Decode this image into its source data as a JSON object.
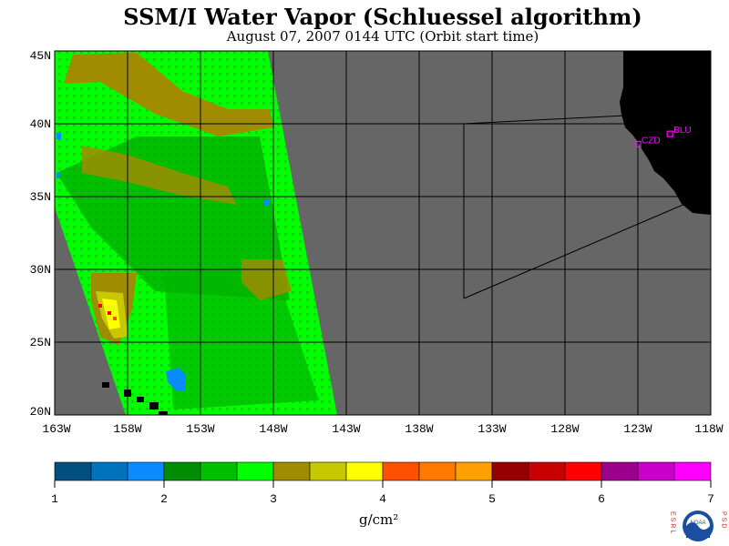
{
  "title": "SSM/I Water Vapor (Schluessel algorithm)",
  "subtitle": "August 07, 2007  0144 UTC  (Orbit start time)",
  "map": {
    "lat_labels": [
      "45N",
      "40N",
      "35N",
      "30N",
      "25N",
      "20N"
    ],
    "lon_labels": [
      "163W",
      "158W",
      "153W",
      "148W",
      "143W",
      "138W",
      "133W",
      "128W",
      "123W",
      "118W"
    ],
    "sites": [
      {
        "code": "CZD",
        "lon": -123.0,
        "lat": 38.6
      },
      {
        "code": "BLU",
        "lon": -120.8,
        "lat": 39.3
      }
    ],
    "colors": {
      "no_data": "#666666",
      "land": "#000000",
      "grid": "#000000",
      "site_marker": "#ff00ff"
    }
  },
  "colorbar": {
    "tick_labels": [
      "1",
      "2",
      "3",
      "4",
      "5",
      "6",
      "7"
    ],
    "unit": "g/cm²",
    "colors": [
      "#00507f",
      "#0073bf",
      "#0a8cff",
      "#008c00",
      "#00bf00",
      "#00ff00",
      "#a08c00",
      "#c8c800",
      "#ffff00",
      "#ff5000",
      "#ff7800",
      "#ffa000",
      "#960000",
      "#c80000",
      "#ff0000",
      "#9a008c",
      "#c800c8",
      "#ff00ff"
    ]
  },
  "logo": {
    "left_text": "ESRL",
    "right_text": "PSD",
    "center_text": "NOAA"
  }
}
